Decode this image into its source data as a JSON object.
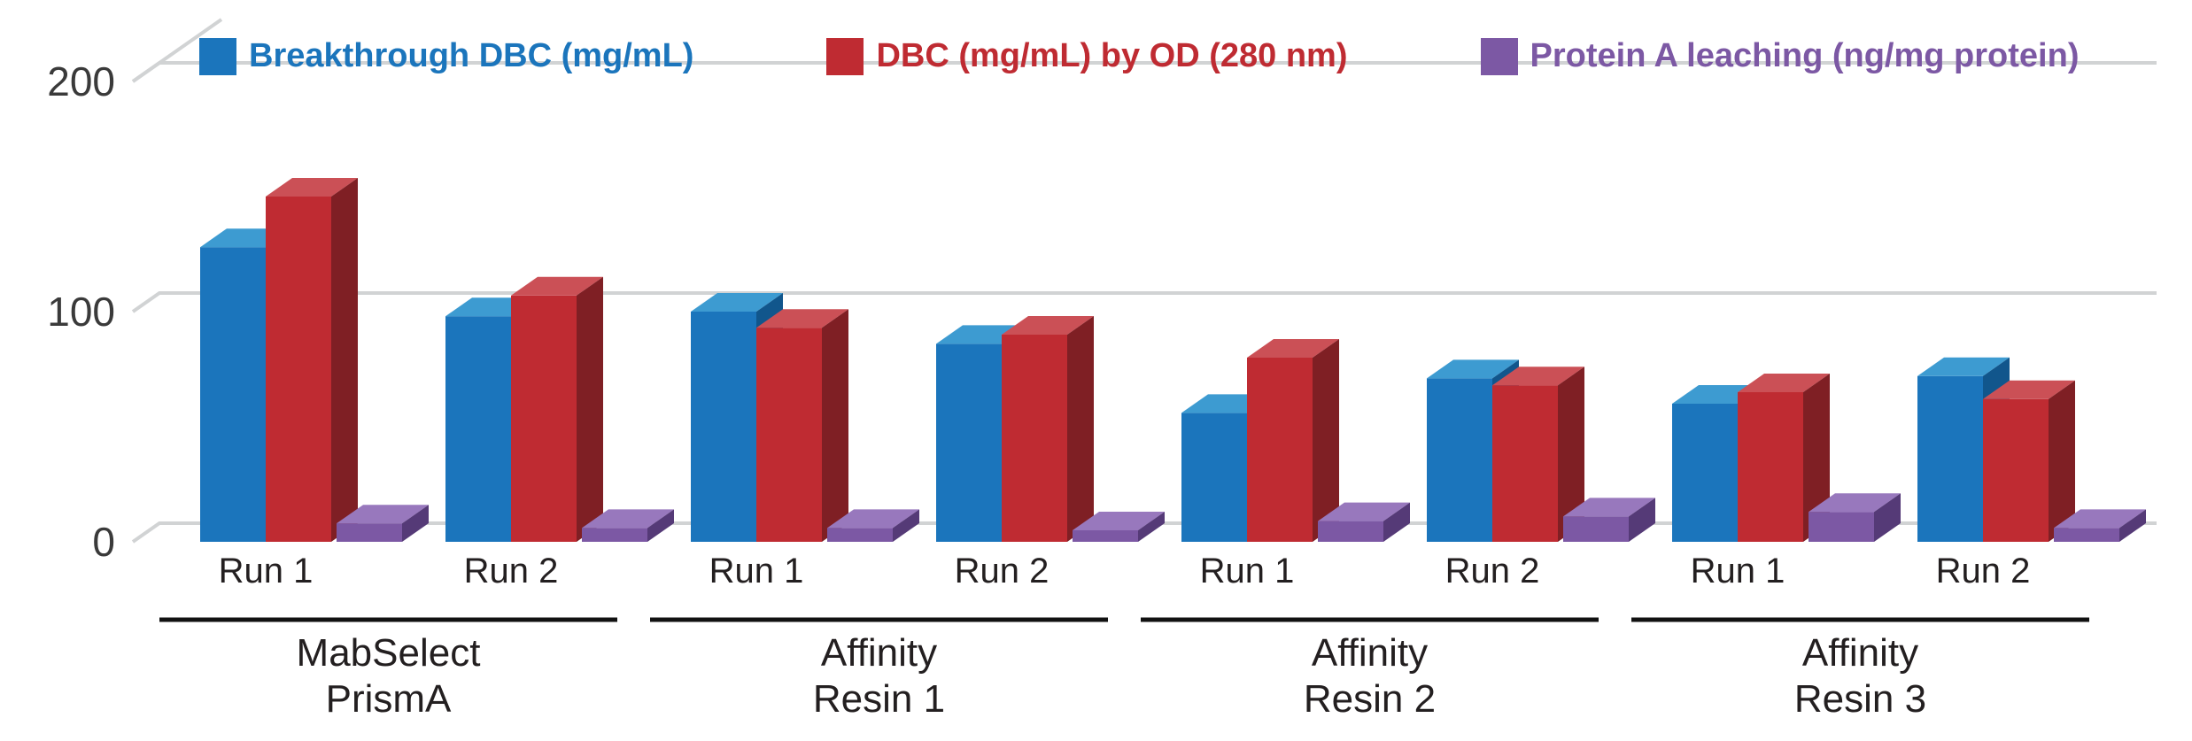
{
  "chart_data": {
    "type": "bar",
    "style": "3d-bars",
    "title": "",
    "xlabel": "",
    "ylabel": "",
    "ylim": [
      0,
      200
    ],
    "yticks": [
      0,
      100,
      200
    ],
    "grid": "horizontal",
    "legend_position": "top",
    "series": [
      {
        "name": "Breakthrough DBC (mg/mL)",
        "key": "breakthrough",
        "color": "#1b75bc",
        "color_top": "#3d9bd1",
        "color_side": "#11568c"
      },
      {
        "name": "DBC (mg/mL) by OD (280 nm)",
        "key": "dbc_od",
        "color": "#bf2b32",
        "color_top": "#cb5056",
        "color_side": "#7f1f24"
      },
      {
        "name": "Protein A leaching (ng/mg protein)",
        "key": "leaching",
        "color": "#7c58a4",
        "color_top": "#9878bd",
        "color_side": "#553a77"
      }
    ],
    "groups": [
      {
        "label_lines": [
          "MabSelect",
          "PrismA"
        ],
        "runs": [
          {
            "label": "Run 1",
            "breakthrough": 128,
            "dbc_od": 150,
            "leaching": 8
          },
          {
            "label": "Run 2",
            "breakthrough": 98,
            "dbc_od": 107,
            "leaching": 6
          }
        ]
      },
      {
        "label_lines": [
          "Affinity",
          "Resin 1"
        ],
        "runs": [
          {
            "label": "Run 1",
            "breakthrough": 100,
            "dbc_od": 93,
            "leaching": 6
          },
          {
            "label": "Run 2",
            "breakthrough": 86,
            "dbc_od": 90,
            "leaching": 5
          }
        ]
      },
      {
        "label_lines": [
          "Affinity",
          "Resin 2"
        ],
        "runs": [
          {
            "label": "Run 1",
            "breakthrough": 56,
            "dbc_od": 80,
            "leaching": 9
          },
          {
            "label": "Run 2",
            "breakthrough": 71,
            "dbc_od": 68,
            "leaching": 11
          }
        ]
      },
      {
        "label_lines": [
          "Affinity",
          "Resin 3"
        ],
        "runs": [
          {
            "label": "Run 1",
            "breakthrough": 60,
            "dbc_od": 65,
            "leaching": 13
          },
          {
            "label": "Run 2",
            "breakthrough": 72,
            "dbc_od": 62,
            "leaching": 6
          }
        ]
      }
    ],
    "colors": {
      "gridline": "#d1d3d4",
      "tick_text": "#3a3a3a",
      "label_text": "#231f20",
      "group_underline": "#111111"
    }
  }
}
